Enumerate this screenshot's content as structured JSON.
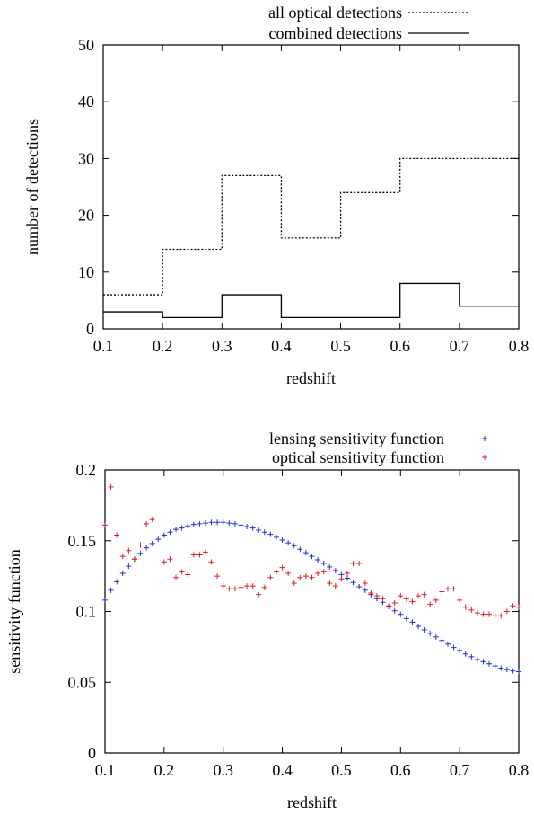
{
  "chart_data": [
    {
      "type": "line",
      "xlabel": "redshift",
      "ylabel": "number of detections",
      "xlim": [
        0.1,
        0.8
      ],
      "ylim": [
        0,
        50
      ],
      "xticks": [
        "0.1",
        "0.2",
        "0.3",
        "0.4",
        "0.5",
        "0.6",
        "0.7",
        "0.8"
      ],
      "yticks": [
        "0",
        "10",
        "20",
        "30",
        "40",
        "50"
      ],
      "grid": false,
      "legend_position": "top-right",
      "series": [
        {
          "name": "all optical detections",
          "style": "dotted",
          "color": "#000000",
          "bin_edges": [
            0.1,
            0.2,
            0.3,
            0.4,
            0.5,
            0.6,
            0.7,
            0.8
          ],
          "values": [
            6,
            14,
            27,
            16,
            24,
            30,
            30
          ]
        },
        {
          "name": "combined detections",
          "style": "solid",
          "color": "#000000",
          "bin_edges": [
            0.1,
            0.2,
            0.3,
            0.4,
            0.5,
            0.6,
            0.7,
            0.8
          ],
          "values": [
            3,
            2,
            6,
            2,
            2,
            8,
            4
          ]
        }
      ]
    },
    {
      "type": "scatter",
      "xlabel": "redshift",
      "ylabel": "sensitivity function",
      "xlim": [
        0.1,
        0.8
      ],
      "ylim": [
        0,
        0.2
      ],
      "xticks": [
        "0.1",
        "0.2",
        "0.3",
        "0.4",
        "0.5",
        "0.6",
        "0.7",
        "0.8"
      ],
      "yticks": [
        "0",
        "0.05",
        "0.1",
        "0.15",
        "0.2"
      ],
      "grid": false,
      "legend_position": "top-right",
      "series": [
        {
          "name": "lensing sensitivity function",
          "marker": "plus",
          "color": "#1f2fd6",
          "x": [
            0.1,
            0.11,
            0.12,
            0.13,
            0.14,
            0.15,
            0.16,
            0.17,
            0.18,
            0.19,
            0.2,
            0.21,
            0.22,
            0.23,
            0.24,
            0.25,
            0.26,
            0.27,
            0.28,
            0.29,
            0.3,
            0.31,
            0.32,
            0.33,
            0.34,
            0.35,
            0.36,
            0.37,
            0.38,
            0.39,
            0.4,
            0.41,
            0.42,
            0.43,
            0.44,
            0.45,
            0.46,
            0.47,
            0.48,
            0.49,
            0.5,
            0.51,
            0.52,
            0.53,
            0.54,
            0.55,
            0.56,
            0.57,
            0.58,
            0.59,
            0.6,
            0.61,
            0.62,
            0.63,
            0.64,
            0.65,
            0.66,
            0.67,
            0.68,
            0.69,
            0.7,
            0.71,
            0.72,
            0.73,
            0.74,
            0.75,
            0.76,
            0.77,
            0.78,
            0.79,
            0.8
          ],
          "y": [
            0.108,
            0.115,
            0.121,
            0.127,
            0.132,
            0.137,
            0.141,
            0.145,
            0.148,
            0.151,
            0.154,
            0.156,
            0.158,
            0.159,
            0.1605,
            0.1615,
            0.162,
            0.1625,
            0.163,
            0.163,
            0.163,
            0.1625,
            0.162,
            0.161,
            0.16,
            0.159,
            0.1575,
            0.156,
            0.1545,
            0.1525,
            0.1505,
            0.1485,
            0.1465,
            0.144,
            0.1415,
            0.139,
            0.1365,
            0.134,
            0.1315,
            0.129,
            0.126,
            0.1235,
            0.1205,
            0.1175,
            0.115,
            0.112,
            0.109,
            0.1065,
            0.1035,
            0.1005,
            0.098,
            0.095,
            0.0925,
            0.0895,
            0.087,
            0.0845,
            0.082,
            0.0795,
            0.077,
            0.0745,
            0.0725,
            0.07,
            0.068,
            0.066,
            0.0645,
            0.063,
            0.0615,
            0.06,
            0.059,
            0.058,
            0.0575
          ]
        },
        {
          "name": "optical sensitivity function",
          "marker": "plus",
          "color": "#e01c24",
          "x": [
            0.1,
            0.11,
            0.12,
            0.13,
            0.14,
            0.15,
            0.16,
            0.17,
            0.18,
            0.2,
            0.21,
            0.22,
            0.23,
            0.24,
            0.25,
            0.26,
            0.27,
            0.28,
            0.29,
            0.3,
            0.31,
            0.32,
            0.33,
            0.34,
            0.35,
            0.36,
            0.37,
            0.38,
            0.39,
            0.4,
            0.41,
            0.42,
            0.43,
            0.44,
            0.45,
            0.46,
            0.47,
            0.48,
            0.49,
            0.5,
            0.51,
            0.52,
            0.53,
            0.54,
            0.55,
            0.56,
            0.57,
            0.58,
            0.59,
            0.6,
            0.61,
            0.62,
            0.63,
            0.64,
            0.65,
            0.66,
            0.67,
            0.68,
            0.69,
            0.7,
            0.71,
            0.72,
            0.73,
            0.74,
            0.75,
            0.76,
            0.77,
            0.78,
            0.79,
            0.8
          ],
          "y": [
            0.161,
            0.188,
            0.154,
            0.139,
            0.143,
            0.137,
            0.147,
            0.162,
            0.165,
            0.135,
            0.137,
            0.124,
            0.128,
            0.126,
            0.14,
            0.14,
            0.142,
            0.135,
            0.125,
            0.118,
            0.116,
            0.116,
            0.117,
            0.118,
            0.118,
            0.112,
            0.117,
            0.124,
            0.128,
            0.131,
            0.127,
            0.12,
            0.124,
            0.125,
            0.124,
            0.127,
            0.128,
            0.12,
            0.118,
            0.123,
            0.127,
            0.134,
            0.134,
            0.12,
            0.113,
            0.111,
            0.109,
            0.104,
            0.106,
            0.111,
            0.109,
            0.107,
            0.111,
            0.112,
            0.105,
            0.108,
            0.114,
            0.116,
            0.116,
            0.108,
            0.103,
            0.101,
            0.099,
            0.098,
            0.098,
            0.097,
            0.097,
            0.1,
            0.104,
            0.103
          ]
        }
      ]
    }
  ]
}
